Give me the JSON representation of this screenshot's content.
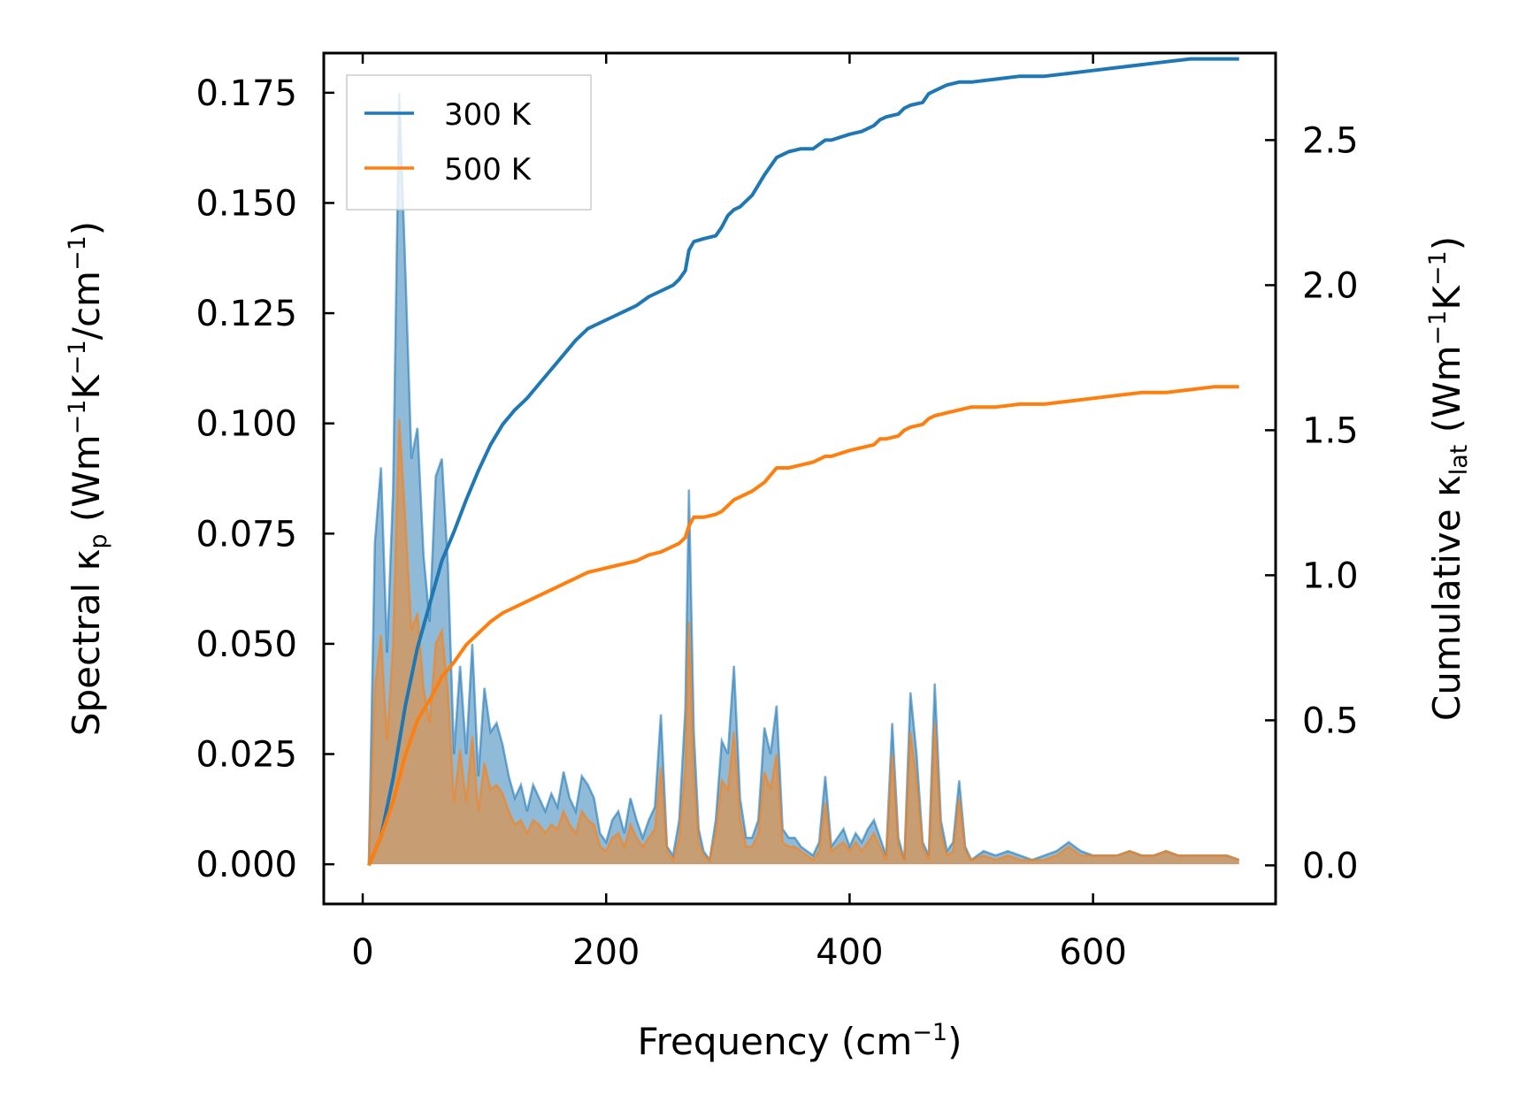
{
  "chart_data": {
    "type": "line",
    "x_axis": {
      "label_main": "Frequency (cm",
      "label_sup": "−1",
      "label_close": ")",
      "range": [
        -32,
        750
      ],
      "ticks": [
        0,
        200,
        400,
        600
      ],
      "tick_labels": [
        "0",
        "200",
        "400",
        "600"
      ]
    },
    "y_left": {
      "label": {
        "p1": "Spectral κ",
        "p1_sub": "p",
        "p2": " (Wm",
        "p2_sup": "−1",
        "p3": "K",
        "p3_sup": "−1",
        "p4": "/cm",
        "p4_sup": "−1",
        "p5": ")"
      },
      "range": [
        -0.009,
        0.184
      ],
      "ticks": [
        0,
        0.025,
        0.05,
        0.075,
        0.1,
        0.125,
        0.15,
        0.175
      ],
      "tick_labels": [
        "0.000",
        "0.025",
        "0.050",
        "0.075",
        "0.100",
        "0.125",
        "0.150",
        "0.175"
      ]
    },
    "y_right": {
      "label": {
        "p1": "Cumulative κ",
        "p1_sub": "lat",
        "p2": " (Wm",
        "p2_sup": "−1",
        "p3": "K",
        "p3_sup": "−1",
        "p4": ")"
      },
      "range": [
        -0.133,
        2.8
      ],
      "ticks": [
        0,
        0.5,
        1.0,
        1.5,
        2.0,
        2.5
      ],
      "tick_labels": [
        "0.0",
        "0.5",
        "1.0",
        "1.5",
        "2.0",
        "2.5"
      ]
    },
    "legend": {
      "position": "top-left",
      "entries": [
        {
          "label": "300 K",
          "color": "#1f77b4"
        },
        {
          "label": "500 K",
          "color": "#ff7f0e"
        }
      ]
    },
    "series": [
      {
        "name": "300 K",
        "color": "#1f77b4",
        "spectral": {
          "x": [
            5,
            10,
            15,
            20,
            25,
            30,
            35,
            40,
            45,
            50,
            55,
            60,
            65,
            70,
            75,
            80,
            85,
            90,
            95,
            100,
            105,
            110,
            115,
            120,
            125,
            130,
            135,
            140,
            145,
            150,
            155,
            160,
            165,
            170,
            175,
            180,
            185,
            190,
            195,
            200,
            205,
            210,
            215,
            220,
            225,
            230,
            235,
            240,
            245,
            250,
            255,
            260,
            265,
            268,
            272,
            276,
            280,
            285,
            290,
            295,
            300,
            305,
            310,
            315,
            320,
            325,
            330,
            335,
            340,
            345,
            350,
            355,
            360,
            365,
            370,
            375,
            380,
            385,
            390,
            395,
            400,
            405,
            410,
            415,
            420,
            425,
            430,
            435,
            440,
            445,
            450,
            455,
            460,
            465,
            470,
            475,
            480,
            485,
            490,
            495,
            500,
            510,
            520,
            530,
            540,
            550,
            560,
            570,
            580,
            590,
            600,
            610,
            620,
            630,
            640,
            650,
            660,
            670,
            680,
            690,
            700,
            710,
            720
          ],
          "y": [
            0,
            0.073,
            0.09,
            0.048,
            0.085,
            0.175,
            0.135,
            0.092,
            0.099,
            0.07,
            0.055,
            0.088,
            0.092,
            0.068,
            0.025,
            0.045,
            0.025,
            0.05,
            0.02,
            0.04,
            0.03,
            0.032,
            0.027,
            0.02,
            0.015,
            0.018,
            0.012,
            0.018,
            0.015,
            0.012,
            0.016,
            0.013,
            0.021,
            0.015,
            0.012,
            0.02,
            0.018,
            0.015,
            0.007,
            0.005,
            0.01,
            0.012,
            0.007,
            0.015,
            0.01,
            0.006,
            0.01,
            0.013,
            0.034,
            0.004,
            0.002,
            0.01,
            0.035,
            0.085,
            0.03,
            0.008,
            0.003,
            0.001,
            0.01,
            0.028,
            0.025,
            0.045,
            0.015,
            0.006,
            0.006,
            0.01,
            0.031,
            0.025,
            0.036,
            0.008,
            0.006,
            0.006,
            0.004,
            0.003,
            0.002,
            0.005,
            0.02,
            0.004,
            0.006,
            0.008,
            0.004,
            0.007,
            0.005,
            0.008,
            0.01,
            0.006,
            0.002,
            0.032,
            0.006,
            0.001,
            0.039,
            0.025,
            0.005,
            0.002,
            0.041,
            0.01,
            0.003,
            0.005,
            0.019,
            0.004,
            0.001,
            0.003,
            0.002,
            0.003,
            0.002,
            0.001,
            0.002,
            0.003,
            0.005,
            0.003,
            0.002,
            0.002,
            0.002,
            0.003,
            0.002,
            0.002,
            0.003,
            0.002,
            0.002,
            0.002,
            0.002,
            0.002,
            0.001
          ]
        },
        "cumulative": {
          "x": [
            5,
            15,
            25,
            35,
            45,
            55,
            65,
            75,
            85,
            95,
            105,
            115,
            125,
            135,
            145,
            155,
            165,
            175,
            185,
            195,
            205,
            215,
            225,
            235,
            245,
            255,
            260,
            265,
            268,
            272,
            280,
            290,
            295,
            300,
            305,
            310,
            320,
            330,
            340,
            345,
            350,
            360,
            370,
            380,
            385,
            400,
            410,
            420,
            425,
            430,
            440,
            445,
            450,
            460,
            465,
            470,
            480,
            490,
            500,
            520,
            540,
            560,
            580,
            600,
            620,
            640,
            660,
            680,
            700,
            720
          ],
          "y": [
            0,
            0.1,
            0.3,
            0.55,
            0.75,
            0.9,
            1.05,
            1.15,
            1.26,
            1.36,
            1.45,
            1.52,
            1.57,
            1.61,
            1.66,
            1.71,
            1.76,
            1.81,
            1.85,
            1.87,
            1.89,
            1.91,
            1.93,
            1.96,
            1.98,
            2.0,
            2.02,
            2.05,
            2.12,
            2.15,
            2.16,
            2.17,
            2.2,
            2.24,
            2.26,
            2.27,
            2.31,
            2.38,
            2.44,
            2.45,
            2.46,
            2.47,
            2.47,
            2.5,
            2.5,
            2.52,
            2.53,
            2.55,
            2.57,
            2.58,
            2.59,
            2.61,
            2.62,
            2.63,
            2.66,
            2.67,
            2.69,
            2.7,
            2.7,
            2.71,
            2.72,
            2.72,
            2.73,
            2.74,
            2.75,
            2.76,
            2.77,
            2.78,
            2.78,
            2.78
          ]
        }
      },
      {
        "name": "500 K",
        "color": "#ff7f0e",
        "spectral": {
          "x": [
            5,
            10,
            15,
            20,
            25,
            30,
            35,
            40,
            45,
            50,
            55,
            60,
            65,
            70,
            75,
            80,
            85,
            90,
            95,
            100,
            105,
            110,
            115,
            120,
            125,
            130,
            135,
            140,
            145,
            150,
            155,
            160,
            165,
            170,
            175,
            180,
            185,
            190,
            195,
            200,
            205,
            210,
            215,
            220,
            225,
            230,
            235,
            240,
            245,
            250,
            255,
            260,
            265,
            268,
            272,
            276,
            280,
            285,
            290,
            295,
            300,
            305,
            310,
            315,
            320,
            325,
            330,
            335,
            340,
            345,
            350,
            355,
            360,
            365,
            370,
            375,
            380,
            385,
            390,
            395,
            400,
            405,
            410,
            415,
            420,
            425,
            430,
            435,
            440,
            445,
            450,
            455,
            460,
            465,
            470,
            475,
            480,
            485,
            490,
            495,
            500,
            510,
            520,
            530,
            540,
            550,
            560,
            570,
            580,
            590,
            600,
            610,
            620,
            630,
            640,
            650,
            660,
            670,
            680,
            690,
            700,
            710,
            720
          ],
          "y": [
            0,
            0.04,
            0.052,
            0.028,
            0.05,
            0.101,
            0.078,
            0.053,
            0.057,
            0.04,
            0.032,
            0.05,
            0.053,
            0.039,
            0.014,
            0.026,
            0.014,
            0.029,
            0.012,
            0.023,
            0.017,
            0.018,
            0.016,
            0.012,
            0.009,
            0.01,
            0.007,
            0.01,
            0.009,
            0.007,
            0.009,
            0.008,
            0.012,
            0.009,
            0.007,
            0.012,
            0.01,
            0.009,
            0.004,
            0.003,
            0.006,
            0.007,
            0.004,
            0.009,
            0.006,
            0.004,
            0.006,
            0.008,
            0.022,
            0.003,
            0.001,
            0.006,
            0.022,
            0.055,
            0.02,
            0.005,
            0.002,
            0.001,
            0.007,
            0.019,
            0.017,
            0.03,
            0.01,
            0.004,
            0.004,
            0.007,
            0.021,
            0.017,
            0.025,
            0.005,
            0.004,
            0.004,
            0.003,
            0.002,
            0.001,
            0.003,
            0.014,
            0.003,
            0.004,
            0.005,
            0.003,
            0.005,
            0.003,
            0.005,
            0.007,
            0.004,
            0.001,
            0.025,
            0.004,
            0.001,
            0.03,
            0.019,
            0.004,
            0.001,
            0.032,
            0.007,
            0.002,
            0.003,
            0.015,
            0.003,
            0.001,
            0.002,
            0.001,
            0.002,
            0.001,
            0.001,
            0.001,
            0.002,
            0.004,
            0.002,
            0.002,
            0.002,
            0.002,
            0.003,
            0.002,
            0.002,
            0.003,
            0.002,
            0.002,
            0.002,
            0.002,
            0.002,
            0.001
          ]
        },
        "cumulative": {
          "x": [
            5,
            15,
            25,
            35,
            45,
            55,
            65,
            75,
            85,
            95,
            105,
            115,
            125,
            135,
            145,
            155,
            165,
            175,
            185,
            195,
            205,
            215,
            225,
            235,
            245,
            255,
            260,
            265,
            268,
            272,
            280,
            290,
            295,
            300,
            305,
            310,
            320,
            330,
            340,
            345,
            350,
            360,
            370,
            380,
            385,
            400,
            410,
            420,
            425,
            430,
            440,
            445,
            450,
            460,
            465,
            470,
            480,
            490,
            500,
            520,
            540,
            560,
            580,
            600,
            620,
            640,
            660,
            680,
            700,
            720
          ],
          "y": [
            0,
            0.1,
            0.22,
            0.38,
            0.5,
            0.57,
            0.65,
            0.7,
            0.76,
            0.8,
            0.84,
            0.87,
            0.89,
            0.91,
            0.93,
            0.95,
            0.97,
            0.99,
            1.01,
            1.02,
            1.03,
            1.04,
            1.05,
            1.07,
            1.08,
            1.1,
            1.11,
            1.13,
            1.17,
            1.2,
            1.2,
            1.21,
            1.22,
            1.24,
            1.26,
            1.27,
            1.29,
            1.32,
            1.37,
            1.37,
            1.37,
            1.38,
            1.39,
            1.41,
            1.41,
            1.43,
            1.44,
            1.45,
            1.47,
            1.47,
            1.48,
            1.5,
            1.51,
            1.52,
            1.54,
            1.55,
            1.56,
            1.57,
            1.58,
            1.58,
            1.59,
            1.59,
            1.6,
            1.61,
            1.62,
            1.63,
            1.63,
            1.64,
            1.65,
            1.65
          ]
        }
      }
    ]
  }
}
